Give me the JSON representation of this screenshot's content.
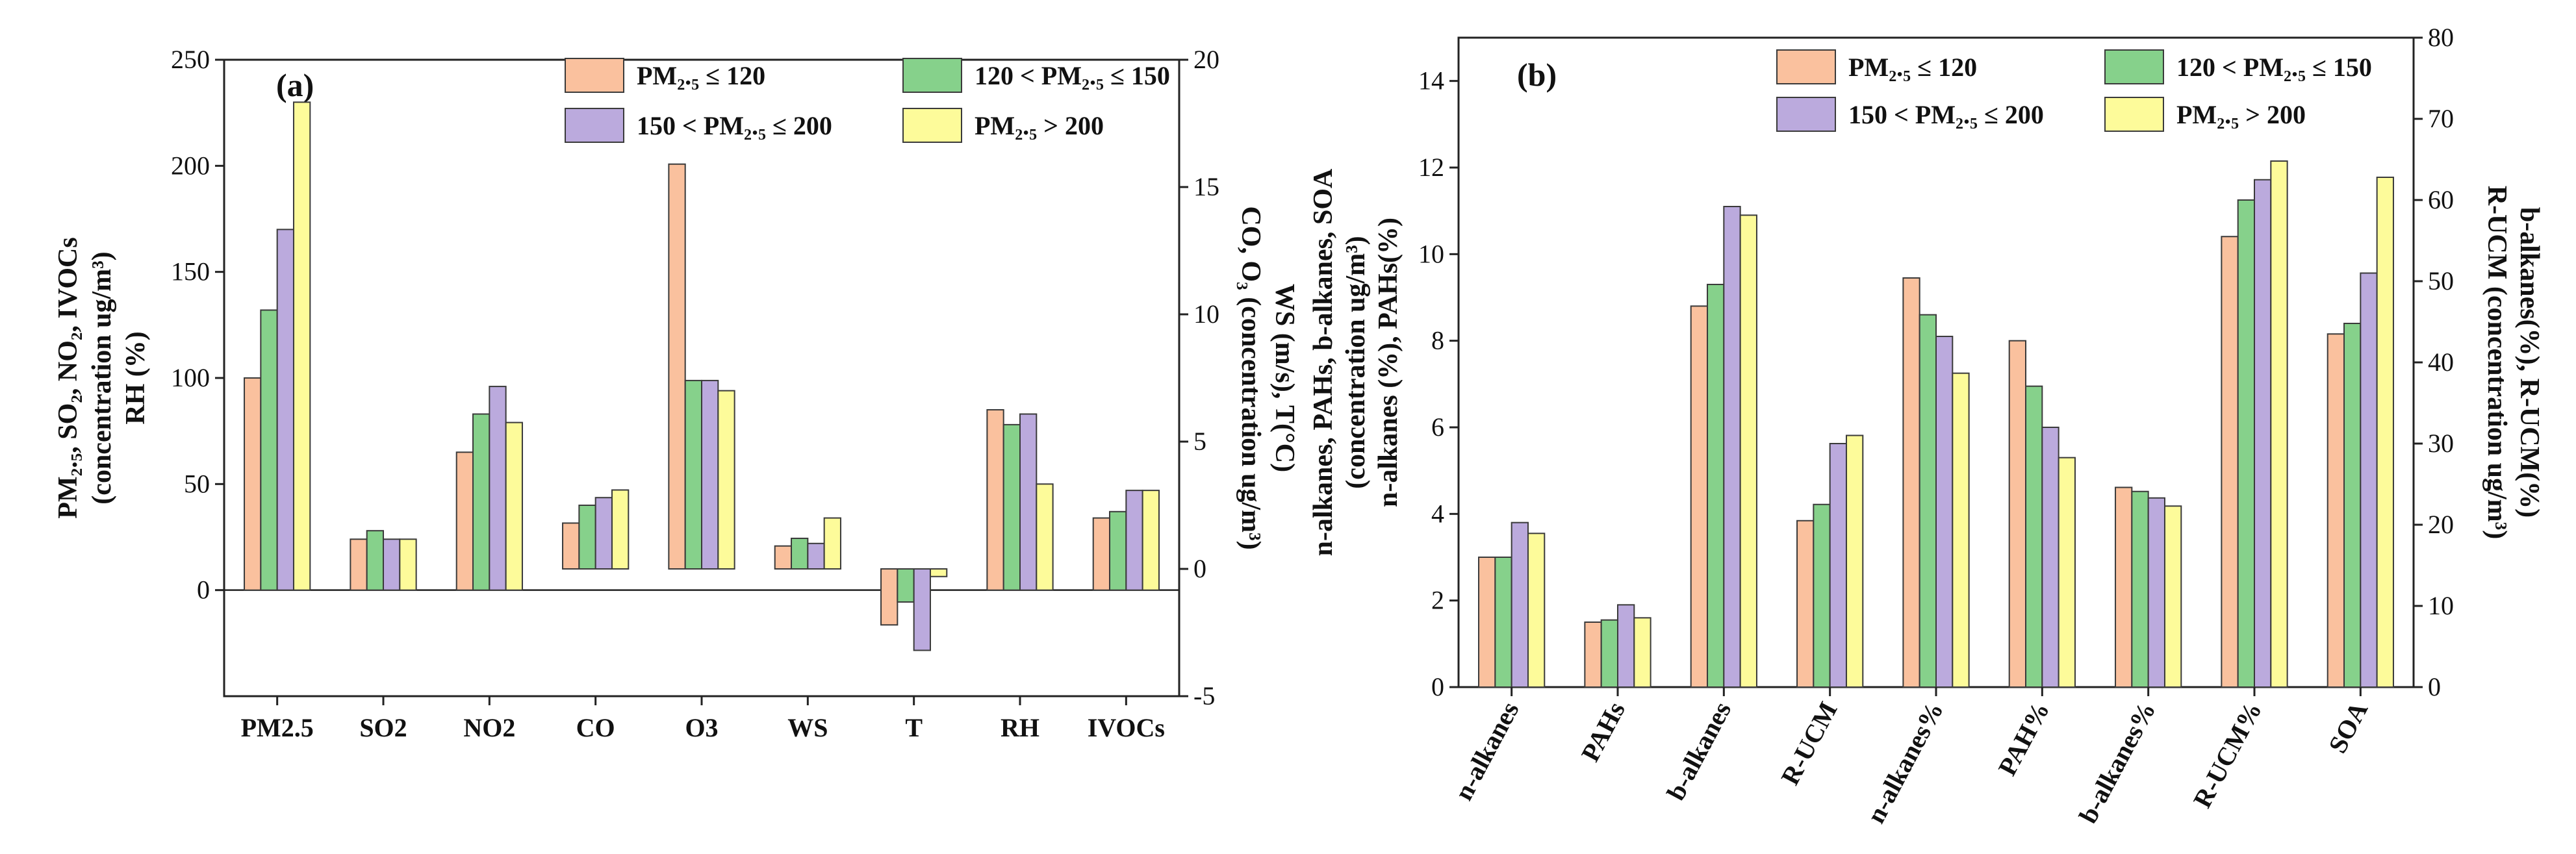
{
  "colors": {
    "s1": "#FAC19E",
    "s2": "#86D18B",
    "s3": "#BBAADD",
    "s4": "#FDFB9A",
    "stroke": "#3a3a3a"
  },
  "chart_data": [
    {
      "type": "bar",
      "panel_label": "(a)",
      "categories": [
        "PM2.5",
        "SO2",
        "NO2",
        "CO",
        "O3",
        "WS",
        "T",
        "RH",
        "IVOCs"
      ],
      "axis_by_category": [
        "left",
        "left",
        "left",
        "right",
        "right",
        "right",
        "right",
        "left",
        "left"
      ],
      "series": [
        {
          "name": "PM₂.₅ ≤ 120",
          "values": [
            100,
            24,
            65,
            1.8,
            15.9,
            0.9,
            -2.2,
            85,
            34
          ]
        },
        {
          "name": "120 < PM₂.₅ ≤ 150",
          "values": [
            132,
            28,
            83,
            2.5,
            7.4,
            1.2,
            -1.3,
            78,
            37
          ]
        },
        {
          "name": "150 < PM₂.₅ ≤ 200",
          "values": [
            170,
            24,
            96,
            2.8,
            7.4,
            1.0,
            -3.2,
            83,
            47
          ]
        },
        {
          "name": "PM₂.₅ > 200",
          "values": [
            230,
            24,
            79,
            3.1,
            7.0,
            2.0,
            -0.3,
            50,
            47
          ]
        }
      ],
      "ylim_left": [
        -50,
        250
      ],
      "ylim_right": [
        -5,
        20
      ],
      "yticks_left": [
        "0",
        "50",
        "100",
        "150",
        "200",
        "250"
      ],
      "yticks_right": [
        "-5",
        "0",
        "5",
        "10",
        "15",
        "20"
      ],
      "ylabel_left": [
        "PM₂.₅, SO₂, NO₂, IVOCs",
        "(concentration ug/m³)",
        "RH (%)"
      ],
      "ylabel_right": [
        "CO, O₃ (concentration ug/m³)",
        "WS (m/s), T(°C)"
      ],
      "legend_position": "top-right"
    },
    {
      "type": "bar",
      "panel_label": "(b)",
      "categories": [
        "n-alkanes",
        "PAHs",
        "b-alkanes",
        "R-UCM",
        "n-alkanes%",
        "PAH%",
        "b-alkanes%",
        "R-UCM%",
        "SOA"
      ],
      "axis_by_category": [
        "left",
        "left",
        "left",
        "right",
        "left",
        "left",
        "right",
        "right",
        "right"
      ],
      "series": [
        {
          "name": "PM₂.₅ ≤ 120",
          "values": [
            3.0,
            1.5,
            8.8,
            20.5,
            9.45,
            8.0,
            24.6,
            55.5,
            43.5
          ]
        },
        {
          "name": "120 < PM₂.₅ ≤ 150",
          "values": [
            3.0,
            1.55,
            9.3,
            22.5,
            8.6,
            6.95,
            24.1,
            60,
            44.8
          ]
        },
        {
          "name": "150 < PM₂.₅ ≤ 200",
          "values": [
            3.8,
            1.9,
            11.1,
            30,
            8.1,
            6.0,
            23.3,
            62.5,
            51
          ]
        },
        {
          "name": "PM₂.₅ > 200",
          "values": [
            3.55,
            1.6,
            10.9,
            31,
            7.25,
            5.3,
            22.3,
            64.8,
            62.8
          ]
        }
      ],
      "ylim_left": [
        0,
        15
      ],
      "ylim_right": [
        0,
        80
      ],
      "yticks_left": [
        "0",
        "2",
        "4",
        "6",
        "8",
        "10",
        "12",
        "14"
      ],
      "yticks_right": [
        "0",
        "10",
        "20",
        "30",
        "40",
        "50",
        "60",
        "70",
        "80"
      ],
      "ylabel_left": [
        "n-alkanes, PAHs, b-alkanes, SOA",
        "(concentration ug/m³)",
        "n-alkanes (%), PAHs(%)"
      ],
      "ylabel_right": [
        "R-UCM (concentration ug/m³)",
        "b-alkanes(%), R-UCM(%)"
      ],
      "legend_position": "top-right"
    }
  ]
}
